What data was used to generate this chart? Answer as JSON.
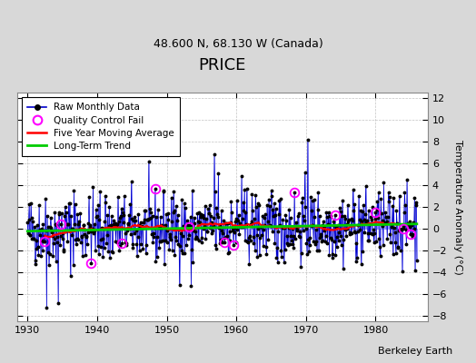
{
  "title": "PRICE",
  "subtitle": "48.600 N, 68.130 W (Canada)",
  "ylabel": "Temperature Anomaly (°C)",
  "credit": "Berkeley Earth",
  "xlim": [
    1928.5,
    1987.5
  ],
  "ylim": [
    -8.5,
    12.5
  ],
  "yticks": [
    -8,
    -6,
    -4,
    -2,
    0,
    2,
    4,
    6,
    8,
    10,
    12
  ],
  "xticks": [
    1930,
    1940,
    1950,
    1960,
    1970,
    1980
  ],
  "fig_bg_color": "#d8d8d8",
  "plot_bg_color": "#ffffff",
  "bar_color": "#8888ff",
  "line_color": "#0000cc",
  "dot_color": "#000000",
  "ma_color": "#ff0000",
  "trend_color": "#00cc00",
  "qc_color": "#ff00ff",
  "seed": 42,
  "n_months": 672,
  "start_year": 1930.0,
  "quality_fail_indices": [
    30,
    58,
    110,
    163,
    220,
    278,
    340,
    355,
    460,
    530,
    600,
    648,
    660
  ]
}
